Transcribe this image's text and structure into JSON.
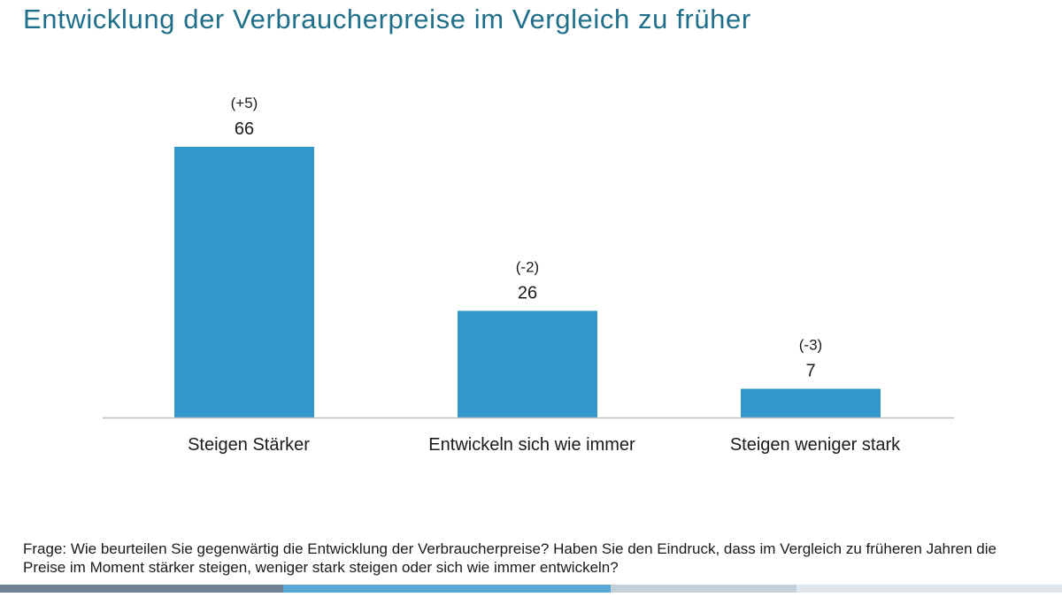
{
  "title": "Entwicklung der Verbraucherpreise im Vergleich zu früher",
  "chart_data": {
    "type": "bar",
    "title": "Entwicklung der Verbraucherpreise im Vergleich zu früher",
    "categories": [
      "Steigen Stärker",
      "Entwickeln sich wie immer",
      "Steigen weniger stark"
    ],
    "values": [
      66,
      26,
      7
    ],
    "changes": [
      "(+5)",
      "(-2)",
      "(-3)"
    ],
    "xlabel": "",
    "ylabel": "",
    "ylim": [
      0,
      66
    ],
    "grid": false,
    "bar_color": "#3399cc",
    "axis_color": "#bfbfbf"
  },
  "question": "Frage: Wie beurteilen Sie gegenwärtig die Entwicklung der Verbraucherpreise? Haben Sie den Eindruck, dass im Vergleich zu früheren Jahren die Preise im Moment stärker steigen, weniger stark steigen oder sich wie immer entwickeln?",
  "footer_colors": [
    "#6e8294",
    "#5aa7d6",
    "#c3cfd9",
    "#dfe6ec"
  ]
}
